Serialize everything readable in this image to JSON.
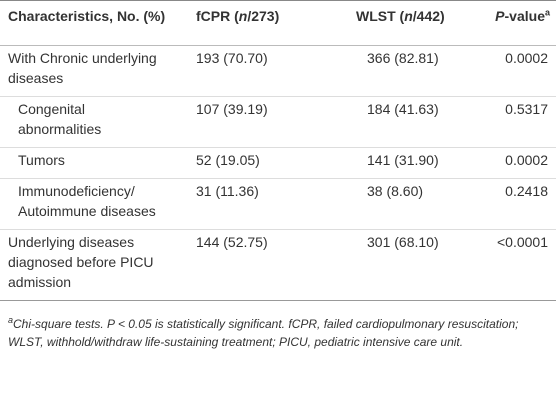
{
  "table": {
    "header": [
      {
        "parts": [
          {
            "text": "Characteristics, No. (%)"
          }
        ]
      },
      {
        "parts": [
          {
            "text": "fCPR ("
          },
          {
            "text": "n",
            "italic": true
          },
          {
            "text": "/273)"
          }
        ]
      },
      {
        "parts": [
          {
            "text": "WLST ("
          },
          {
            "text": "n",
            "italic": true
          },
          {
            "text": "/442)"
          }
        ]
      },
      {
        "parts": [
          {
            "text": "P",
            "italic": true
          },
          {
            "text": "-value"
          },
          {
            "text": "a",
            "sup": true
          }
        ]
      }
    ],
    "rows": [
      {
        "indent": false,
        "cells": [
          "With Chronic underlying diseases",
          "193 (70.70)",
          "366 (82.81)",
          "0.0002"
        ]
      },
      {
        "indent": true,
        "cells": [
          "Congenital abnormalities",
          "107 (39.19)",
          "184 (41.63)",
          "0.5317"
        ]
      },
      {
        "indent": true,
        "cells": [
          "Tumors",
          "52 (19.05)",
          "141 (31.90)",
          "0.0002"
        ]
      },
      {
        "indent": true,
        "cells": [
          "Immunodeficiency/ Autoimmune diseases",
          "31 (11.36)",
          "38 (8.60)",
          "0.2418"
        ]
      },
      {
        "indent": false,
        "cells": [
          "Underlying diseases diagnosed before PICU admission",
          "144 (52.75)",
          "301 (68.10)",
          "<0.0001"
        ]
      }
    ]
  },
  "footnote": {
    "marker": "a",
    "text": "Chi-square tests. P < 0.05 is statistically significant. fCPR, failed cardiopulmonary resuscitation; WLST, withhold/withdraw life-sustaining treatment; PICU, pediatric intensive care unit."
  }
}
